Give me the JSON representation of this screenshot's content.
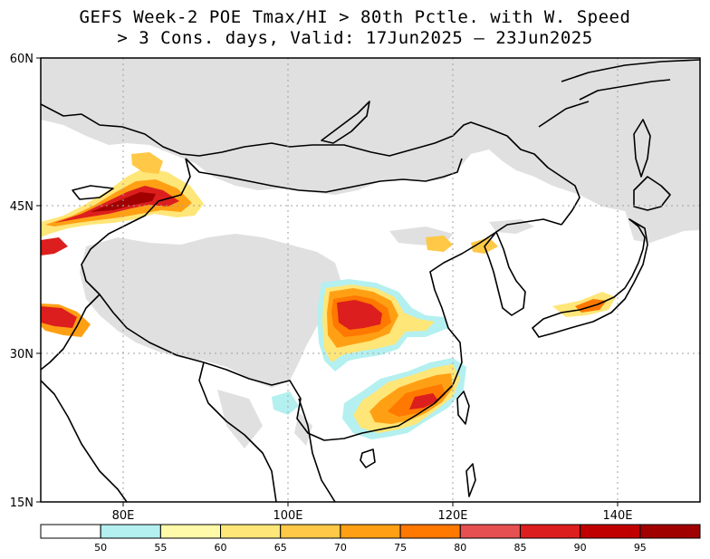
{
  "title_line1": "GEFS Week-2 POE Tmax/HI > 80th Pctle. with W. Speed",
  "title_line2": "> 3 Cons. days, Valid: 17Jun2025 – 23Jun2025",
  "lat_labels": [
    "60N",
    "45N",
    "30N",
    "15N"
  ],
  "lon_labels": [
    "80E",
    "100E",
    "120E",
    "140E"
  ],
  "colorbar": {
    "bins": [
      "#ffffff",
      "#b4f0f0",
      "#fffaaa",
      "#ffe678",
      "#ffc846",
      "#ffa014",
      "#ff7800",
      "#e65050",
      "#dc1e1e",
      "#c00000",
      "#a00000"
    ],
    "tick_labels": [
      "50",
      "55",
      "60",
      "65",
      "70",
      "75",
      "80",
      "85",
      "90",
      "95"
    ]
  },
  "colors": {
    "masked_gray": "#e0e0e0",
    "gridline": "#a0a0a0"
  }
}
